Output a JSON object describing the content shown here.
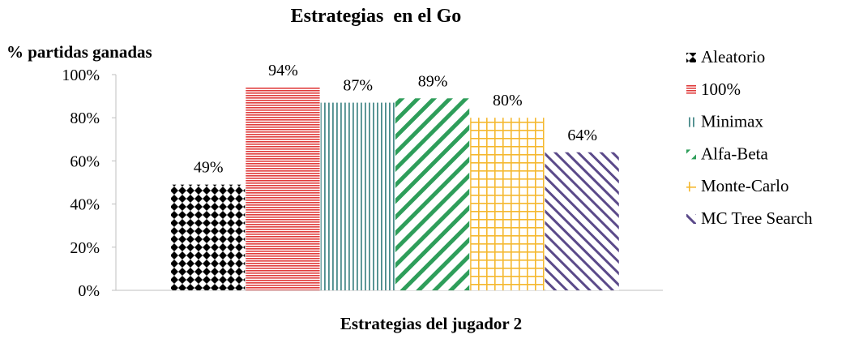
{
  "chart_data": {
    "type": "bar",
    "title": "Estrategias  en el Go",
    "xlabel": "Estrategias del jugador 2",
    "ylabel": "% partidas ganadas",
    "ylim": [
      0,
      100
    ],
    "yticks": [
      0,
      20,
      40,
      60,
      80,
      100
    ],
    "ytick_labels": [
      "0%",
      "20%",
      "40%",
      "60%",
      "80%",
      "100%"
    ],
    "grid": false,
    "legend_position": "right",
    "series": [
      {
        "name": "Aleatorio",
        "value": 49,
        "label": "49%",
        "color": "#000000",
        "pattern": "diamonds"
      },
      {
        "name": "100%",
        "value": 94,
        "label": "94%",
        "color": "#e03c3c",
        "pattern": "horizontal-lines"
      },
      {
        "name": "Minimax",
        "value": 87,
        "label": "87%",
        "color": "#4a8c8c",
        "pattern": "vertical-lines"
      },
      {
        "name": "Alfa-Beta",
        "value": 89,
        "label": "89%",
        "color": "#2e9e5a",
        "pattern": "diagonal-up"
      },
      {
        "name": "Monte-Carlo",
        "value": 80,
        "label": "80%",
        "color": "#f5b82e",
        "pattern": "grid"
      },
      {
        "name": "MC Tree Search",
        "value": 64,
        "label": "64%",
        "color": "#5b4a8a",
        "pattern": "diagonal-down"
      }
    ]
  }
}
